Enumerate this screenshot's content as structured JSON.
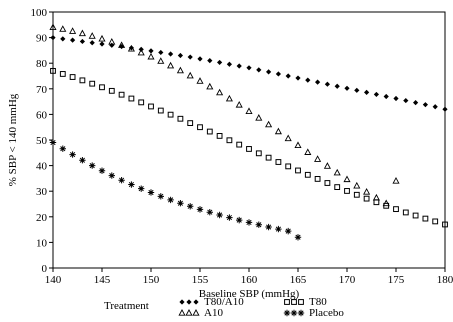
{
  "chart_data": {
    "type": "scatter",
    "xlabel": "Baseline SBP (mmHg)",
    "ylabel": "% SBP < 140 mmHg",
    "xlim": [
      140,
      180
    ],
    "ylim": [
      0,
      100
    ],
    "x_ticks": [
      140,
      145,
      150,
      155,
      160,
      165,
      170,
      175,
      180
    ],
    "y_ticks": [
      0,
      10,
      20,
      30,
      40,
      50,
      60,
      70,
      80,
      90,
      100
    ],
    "grid": false,
    "legend_position": "bottom",
    "legend_title": "Treatment",
    "series": [
      {
        "name": "T80/A10",
        "marker": "diamond-filled",
        "color": "#000000",
        "x": [
          140,
          141,
          142,
          143,
          144,
          145,
          146,
          147,
          148,
          149,
          150,
          151,
          152,
          153,
          154,
          155,
          156,
          157,
          158,
          159,
          160,
          161,
          162,
          163,
          164,
          165,
          166,
          167,
          168,
          169,
          170,
          171,
          172,
          173,
          174,
          175,
          176,
          177,
          178,
          179,
          180
        ],
        "y": [
          90.0,
          89.5,
          89.0,
          88.5,
          88.0,
          87.5,
          87.0,
          86.5,
          86.0,
          85.4,
          84.8,
          84.2,
          83.6,
          83.0,
          82.4,
          81.7,
          81.0,
          80.3,
          79.6,
          78.9,
          78.2,
          77.4,
          76.6,
          75.8,
          75.0,
          74.2,
          73.4,
          72.6,
          71.8,
          71.0,
          70.2,
          69.4,
          68.6,
          67.8,
          67.0,
          66.2,
          65.4,
          64.6,
          63.8,
          63.0,
          62.0
        ]
      },
      {
        "name": "T80",
        "marker": "square-open",
        "color": "#000000",
        "x": [
          140,
          141,
          142,
          143,
          144,
          145,
          146,
          147,
          148,
          149,
          150,
          151,
          152,
          153,
          154,
          155,
          156,
          157,
          158,
          159,
          160,
          161,
          162,
          163,
          164,
          165,
          166,
          167,
          168,
          169,
          170,
          171,
          172,
          173,
          174,
          175,
          176,
          177,
          178,
          179,
          180
        ],
        "y": [
          77.0,
          75.8,
          74.6,
          73.3,
          72.0,
          70.6,
          69.2,
          67.7,
          66.2,
          64.7,
          63.1,
          61.5,
          59.9,
          58.3,
          56.6,
          55.0,
          53.3,
          51.6,
          49.9,
          48.2,
          46.5,
          44.8,
          43.1,
          41.4,
          39.7,
          38.1,
          36.4,
          34.8,
          33.2,
          31.6,
          30.1,
          28.6,
          27.1,
          25.7,
          24.3,
          23.0,
          21.7,
          20.5,
          19.3,
          18.2,
          17.0
        ]
      },
      {
        "name": "A10",
        "marker": "triangle-open",
        "color": "#000000",
        "x": [
          140,
          141,
          142,
          143,
          144,
          145,
          146,
          147,
          148,
          149,
          150,
          151,
          152,
          153,
          154,
          155,
          156,
          157,
          158,
          159,
          160,
          161,
          162,
          163,
          164,
          165,
          166,
          167,
          168,
          169,
          170,
          171,
          172,
          173,
          174,
          175
        ],
        "y": [
          94.0,
          93.3,
          92.5,
          91.6,
          90.6,
          89.5,
          88.3,
          87.0,
          85.6,
          84.1,
          82.5,
          80.8,
          79.0,
          77.1,
          75.1,
          73.0,
          70.8,
          68.5,
          66.1,
          63.7,
          61.2,
          58.6,
          56.0,
          53.3,
          50.6,
          47.9,
          45.2,
          42.5,
          39.8,
          37.2,
          34.6,
          32.1,
          29.7,
          27.4,
          25.2,
          34.0
        ]
      },
      {
        "name": "Placebo",
        "marker": "asterisk",
        "color": "#000000",
        "x": [
          140,
          141,
          142,
          143,
          144,
          145,
          146,
          147,
          148,
          149,
          150,
          151,
          152,
          153,
          154,
          155,
          156,
          157,
          158,
          159,
          160,
          161,
          162,
          163,
          164,
          165
        ],
        "y": [
          49.0,
          46.6,
          44.3,
          42.1,
          40.0,
          38.0,
          36.1,
          34.3,
          32.6,
          31.0,
          29.5,
          28.0,
          26.6,
          25.3,
          24.1,
          22.9,
          21.8,
          20.7,
          19.7,
          18.7,
          17.8,
          16.9,
          16.0,
          15.2,
          14.4,
          12.0
        ]
      }
    ]
  }
}
